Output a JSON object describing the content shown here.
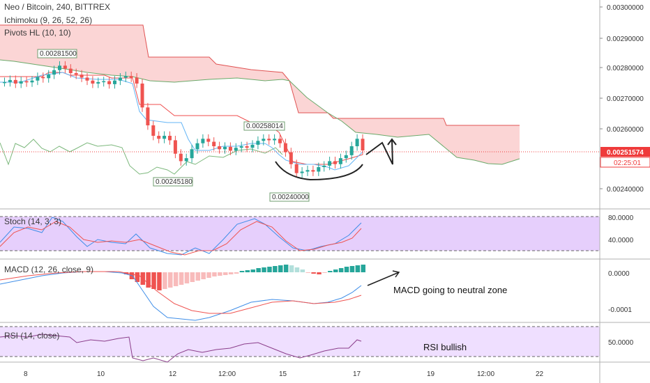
{
  "header": {
    "title": "Neo / Bitcoin, 240, BITTREX",
    "indicators": [
      "Ichimoku (9, 26, 52, 26)",
      "Pivots HL (10, 10)"
    ]
  },
  "colors": {
    "up": "#26a69a",
    "down": "#ef5350",
    "cloud_bear": "#fbd5d5",
    "kijun": "#ef4d4d",
    "tenkan": "#64b5f6",
    "chikou": "#7cb87c",
    "stoch_bg": "#e6cffc",
    "rsi_bg": "#efdfff",
    "rsi": "#8a3d8a",
    "price_tag": "#ef3b3b",
    "time_tag": "#e24040"
  },
  "price_axis": {
    "ticks": [
      "0.00300000",
      "0.00290000",
      "0.00280000",
      "0.00270000",
      "0.00260000",
      "0.00240000"
    ],
    "current_price": "0.00251574",
    "countdown": "02:25:01"
  },
  "time_axis": {
    "ticks": [
      "8",
      "10",
      "12",
      "12:00",
      "15",
      "17",
      "19",
      "12:00",
      "22"
    ]
  },
  "pivots": [
    {
      "label": "0.00281500",
      "x": "Feb 8 20:00",
      "value": 0.002815,
      "type": "high"
    },
    {
      "label": "0.00258014",
      "x": "Feb 14 12:00",
      "value": 0.00258014,
      "type": "high"
    },
    {
      "label": "0.00245180",
      "x": "Feb 12 00:00",
      "value": 0.0024518,
      "type": "low"
    },
    {
      "label": "0.00240000",
      "x": "Feb 15 12:00",
      "value": 0.0024,
      "type": "low"
    }
  ],
  "stoch": {
    "title": "Stoch (14, 3, 3)",
    "ticks": [
      "80.0000",
      "40.0000"
    ]
  },
  "macd": {
    "title": "MACD (12, 26, close, 9)",
    "ticks": [
      "0.0000",
      "-0.0001"
    ],
    "note": "MACD going to neutral zone"
  },
  "rsi": {
    "title": "RSI (14, close)",
    "ticks": [
      "50.0000"
    ],
    "note": "RSI bullish"
  },
  "chart_data": {
    "type": "candlestick",
    "title": "Neo / Bitcoin, 240, BITTREX",
    "x_axis_labels": [
      "8",
      "10",
      "12",
      "12:00",
      "15",
      "17",
      "19",
      "12:00",
      "22"
    ],
    "y_range": [
      0.00232,
      0.00302
    ],
    "close_series": [
      0.002745,
      0.002752,
      0.00274,
      0.002748,
      0.002744,
      0.00275,
      0.002762,
      0.002758,
      0.00277,
      0.002785,
      0.0028,
      0.00279,
      0.002775,
      0.00277,
      0.00276,
      0.00275,
      0.00274,
      0.002745,
      0.002748,
      0.002738,
      0.00275,
      0.00276,
      0.002765,
      0.00276,
      0.00274,
      0.00266,
      0.0026,
      0.002565,
      0.002555,
      0.002565,
      0.00255,
      0.002505,
      0.00248,
      0.00249,
      0.00252,
      0.00254,
      0.002555,
      0.002545,
      0.00253,
      0.00252,
      0.002528,
      0.002515,
      0.002525,
      0.00253,
      0.002525,
      0.002535,
      0.002548,
      0.002555,
      0.00255,
      0.002555,
      0.00254,
      0.00251,
      0.00247,
      0.00244,
      0.002445,
      0.00245,
      0.002445,
      0.00246,
      0.002465,
      0.00248,
      0.00247,
      0.00249,
      0.0025,
      0.00253,
      0.002555,
      0.002516
    ]
  }
}
